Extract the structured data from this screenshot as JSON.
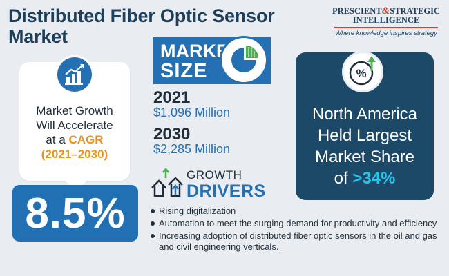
{
  "title": "Distributed Fiber Optic Sensor Market",
  "logo": {
    "line1_a": "PRESCIENT",
    "amp": "&",
    "line1_b": "STRATEGIC",
    "line2": "INTELLIGENCE",
    "tagline": "Where knowledge inspires strategy"
  },
  "growth_card": {
    "line1": "Market Growth",
    "line2": "Will Accelerate",
    "line3_prefix": "at a",
    "cagr_label": "CAGR",
    "period": "(2021–2030)",
    "cagr_value": "8.5%",
    "icon": "bar-chart-growth-icon"
  },
  "market_size": {
    "label_line1": "MARKET",
    "label_line2": "SIZE",
    "icon": "pie-chart-icon",
    "entries": [
      {
        "year": "2021",
        "value": "$1,096 Million"
      },
      {
        "year": "2030",
        "value": "$2,285 Million"
      }
    ]
  },
  "growth_drivers": {
    "label_line1": "GROWTH",
    "label_line2": "DRIVERS",
    "icon": "houses-arrows-icon",
    "items": [
      "Rising digitalization",
      "Automation to meet the surging demand for productivity and efficiency",
      "Increasing adoption of distributed fiber optic sensors in the oil and gas and civil engineering verticals."
    ]
  },
  "region_card": {
    "line1": "North America",
    "line2": "Held Largest",
    "line3": "Market Share",
    "line4_prefix": "of",
    "share": ">34%",
    "icon": "percent-growth-icon"
  },
  "colors": {
    "navy": "#1e3f5a",
    "blue": "#2470b3",
    "dark_card": "#1c4967",
    "orange": "#e8941a",
    "cyan": "#22c7ee",
    "green": "#4caf50",
    "red": "#d7402e"
  }
}
